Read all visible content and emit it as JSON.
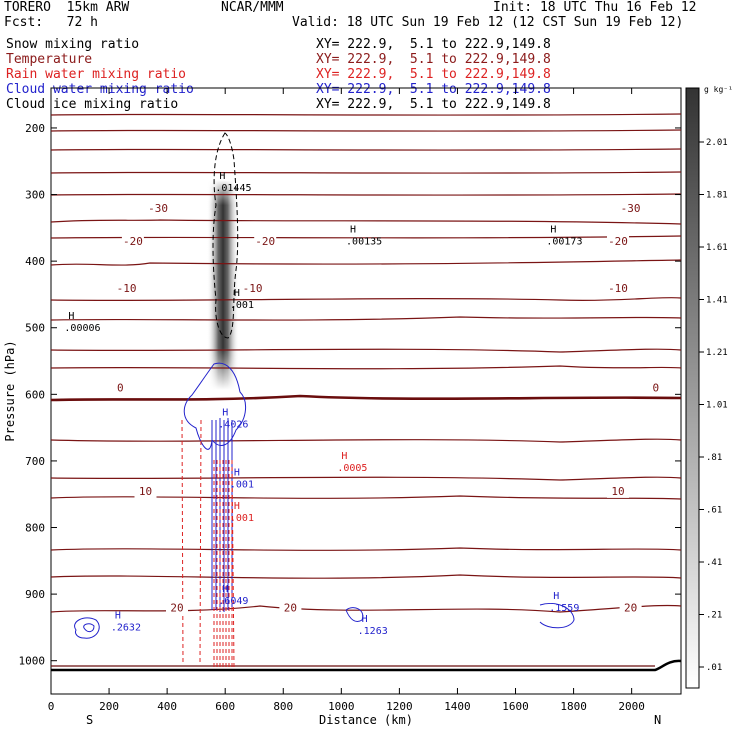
{
  "header": {
    "model": "TORERO  15km ARW",
    "org": "NCAR/MMM",
    "init": "Init: 18 UTC Thu 16 Feb 12",
    "fcst": "Fcst:   72 h",
    "valid": "Valid: 18 UTC Sun 19 Feb 12 (12 CST Sun 19 Feb 12)",
    "fields": [
      {
        "name": "Snow mixing ratio",
        "xy": "XY= 222.9,  5.1 to 222.9,149.8",
        "color": "#000000"
      },
      {
        "name": "Temperature",
        "xy": "XY= 222.9,  5.1 to 222.9,149.8",
        "color": "#8b1a1a"
      },
      {
        "name": "Rain water mixing ratio",
        "xy": "XY= 222.9,  5.1 to 222.9,149.8",
        "color": "#dd2222"
      },
      {
        "name": "Cloud water mixing ratio",
        "xy": "XY= 222.9,  5.1 to 222.9,149.8",
        "color": "#2222cc"
      },
      {
        "name": "Cloud ice mixing ratio",
        "xy": "XY= 222.9,  5.1 to 222.9,149.8",
        "color": "#000000"
      }
    ]
  },
  "chart_data": {
    "type": "cross-section contour",
    "xlabel": "Distance (km)",
    "ylabel": "Pressure (hPa)",
    "x_range": [
      0,
      2170
    ],
    "y_range": [
      140,
      1050
    ],
    "x_ticks": [
      0,
      200,
      400,
      600,
      800,
      1000,
      1200,
      1400,
      1600,
      1800,
      2000
    ],
    "y_ticks": [
      200,
      300,
      400,
      500,
      600,
      700,
      800,
      900,
      1000
    ],
    "x_end_labels": {
      "left": "S",
      "right": "N"
    },
    "colorbar": {
      "unit": "g kg⁻¹",
      "ticks": [
        ".01",
        ".21",
        ".41",
        ".61",
        ".81",
        "1.01",
        "1.21",
        "1.41",
        "1.61",
        "1.81",
        "2.01"
      ]
    },
    "temperature_contours": [
      {
        "label": "-30",
        "p": 320
      },
      {
        "label": "-20",
        "p": 370
      },
      {
        "label": "-10",
        "p": 440
      },
      {
        "label": "0",
        "p": 590
      },
      {
        "label": "10",
        "p": 745
      },
      {
        "label": "20",
        "p": 920
      }
    ],
    "maxima_labels": [
      {
        "text": ".01445",
        "x": 580,
        "p": 295,
        "color": "#000000"
      },
      {
        "text": ".00135",
        "x": 1030,
        "p": 375,
        "color": "#000000"
      },
      {
        "text": ".00173",
        "x": 1720,
        "p": 375,
        "color": "#000000"
      },
      {
        "text": ".00006",
        "x": 60,
        "p": 505,
        "color": "#000000"
      },
      {
        "text": ".001",
        "x": 630,
        "p": 470,
        "color": "#000000"
      },
      {
        "text": ".4026",
        "x": 590,
        "p": 650,
        "color": "#2222cc"
      },
      {
        "text": ".0005",
        "x": 1000,
        "p": 715,
        "color": "#dd2222"
      },
      {
        "text": ".001",
        "x": 630,
        "p": 740,
        "color": "#2222cc"
      },
      {
        "text": ".001",
        "x": 630,
        "p": 790,
        "color": "#dd2222"
      },
      {
        "text": ".6049",
        "x": 590,
        "p": 915,
        "color": "#2222cc"
      },
      {
        "text": ".1559",
        "x": 1730,
        "p": 925,
        "color": "#2222cc"
      },
      {
        "text": ".1263",
        "x": 1070,
        "p": 960,
        "color": "#2222cc"
      },
      {
        "text": ".2632",
        "x": 220,
        "p": 955,
        "color": "#2222cc"
      }
    ]
  }
}
